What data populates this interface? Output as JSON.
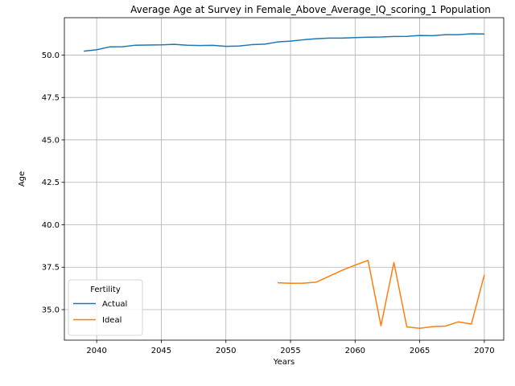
{
  "chart_data": {
    "type": "line",
    "title": "Average Age at Survey in Female_Above_Average_IQ_scoring_1 Population",
    "xlabel": "Years",
    "ylabel": "Age",
    "xlim": [
      2037.5,
      2071.5
    ],
    "ylim": [
      33.2,
      52.2
    ],
    "xticks": [
      2040,
      2045,
      2050,
      2055,
      2060,
      2065,
      2070
    ],
    "yticks": [
      35.0,
      37.5,
      40.0,
      42.5,
      45.0,
      47.5,
      50.0
    ],
    "xtick_labels": [
      "2040",
      "2045",
      "2050",
      "2055",
      "2060",
      "2065",
      "2070"
    ],
    "ytick_labels": [
      "35.0",
      "37.5",
      "40.0",
      "42.5",
      "45.0",
      "47.5",
      "50.0"
    ],
    "grid": true,
    "legend": {
      "title": "Fertility",
      "position": "lower-left"
    },
    "colors": {
      "Actual": "#1f77b4",
      "Ideal": "#ff7f0e"
    },
    "series": [
      {
        "name": "Actual",
        "x": [
          2039,
          2040,
          2041,
          2042,
          2043,
          2044,
          2045,
          2046,
          2047,
          2048,
          2049,
          2050,
          2051,
          2052,
          2053,
          2054,
          2055,
          2056,
          2057,
          2058,
          2059,
          2060,
          2061,
          2062,
          2063,
          2064,
          2065,
          2066,
          2067,
          2068,
          2069,
          2070
        ],
        "values": [
          50.23,
          50.31,
          50.48,
          50.49,
          50.58,
          50.59,
          50.6,
          50.63,
          50.58,
          50.56,
          50.57,
          50.51,
          50.53,
          50.61,
          50.64,
          50.77,
          50.82,
          50.9,
          50.96,
          51.0,
          51.0,
          51.03,
          51.05,
          51.06,
          51.09,
          51.1,
          51.15,
          51.14,
          51.2,
          51.2,
          51.25,
          51.24
        ]
      },
      {
        "name": "Ideal",
        "x": [
          2054,
          2055,
          2056,
          2057,
          2058,
          2059,
          2060,
          2061,
          2062,
          2063,
          2064,
          2065,
          2066,
          2067,
          2068,
          2069,
          2070
        ],
        "values": [
          36.58,
          36.55,
          36.56,
          36.62,
          36.97,
          37.32,
          37.62,
          37.9,
          34.05,
          37.78,
          33.98,
          33.9,
          34.0,
          34.03,
          34.28,
          34.15,
          37.05
        ]
      }
    ]
  }
}
